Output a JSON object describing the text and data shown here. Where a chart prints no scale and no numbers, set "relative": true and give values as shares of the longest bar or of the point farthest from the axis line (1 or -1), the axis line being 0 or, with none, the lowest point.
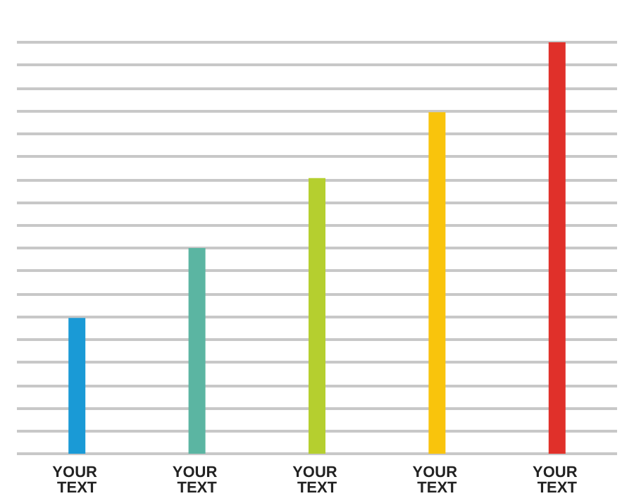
{
  "chart_data": {
    "type": "bar",
    "relative": true,
    "grid": "y",
    "categories": [
      "YOUR TEXT",
      "YOUR TEXT",
      "YOUR TEXT",
      "YOUR TEXT",
      "YOUR TEXT"
    ],
    "values": [
      0.33,
      0.5,
      0.67,
      0.83,
      1
    ],
    "colors": [
      "#1a9ad6",
      "#5bb5a2",
      "#b5cf2f",
      "#f9c40c",
      "#e0302a"
    ]
  }
}
